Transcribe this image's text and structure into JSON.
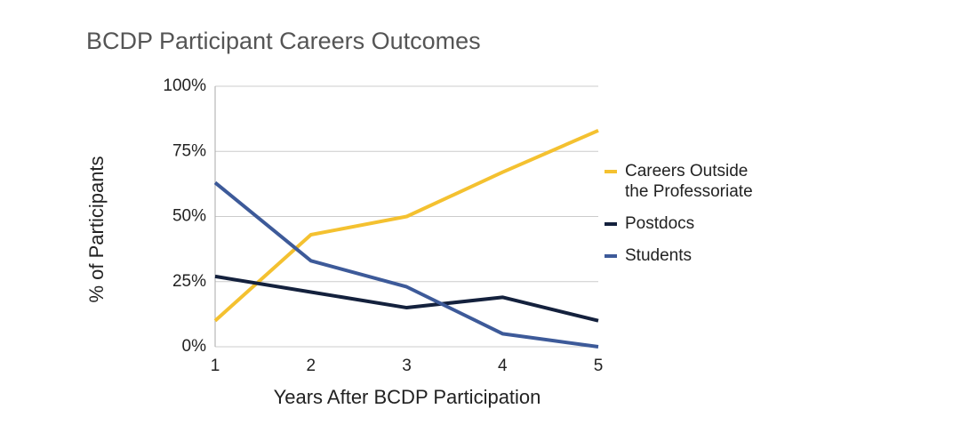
{
  "chart_data": {
    "type": "line",
    "title": "BCDP Participant Careers Outcomes",
    "x_label": "Years After BCDP Participation",
    "y_label": "% of Participants",
    "x": [
      1,
      2,
      3,
      4,
      5
    ],
    "series": [
      {
        "name": "Careers Outside the Professoriate",
        "color": "#f4c130",
        "values": [
          10,
          43,
          50,
          67,
          83
        ]
      },
      {
        "name": "Postdocs",
        "color": "#14213d",
        "values": [
          27,
          21,
          15,
          19,
          10
        ]
      },
      {
        "name": "Students",
        "color": "#3d5a99",
        "values": [
          63,
          33,
          23,
          5,
          0
        ]
      }
    ],
    "xlim": [
      1,
      5
    ],
    "xticks": [
      1,
      2,
      3,
      4,
      5
    ],
    "ylim": [
      0,
      100
    ],
    "yticks": [
      {
        "value": 0,
        "label": "0%"
      },
      {
        "value": 25,
        "label": "25%"
      },
      {
        "value": 50,
        "label": "50%"
      },
      {
        "value": 75,
        "label": "75%"
      },
      {
        "value": 100,
        "label": "100%"
      }
    ],
    "grid": true,
    "legend": "right"
  }
}
